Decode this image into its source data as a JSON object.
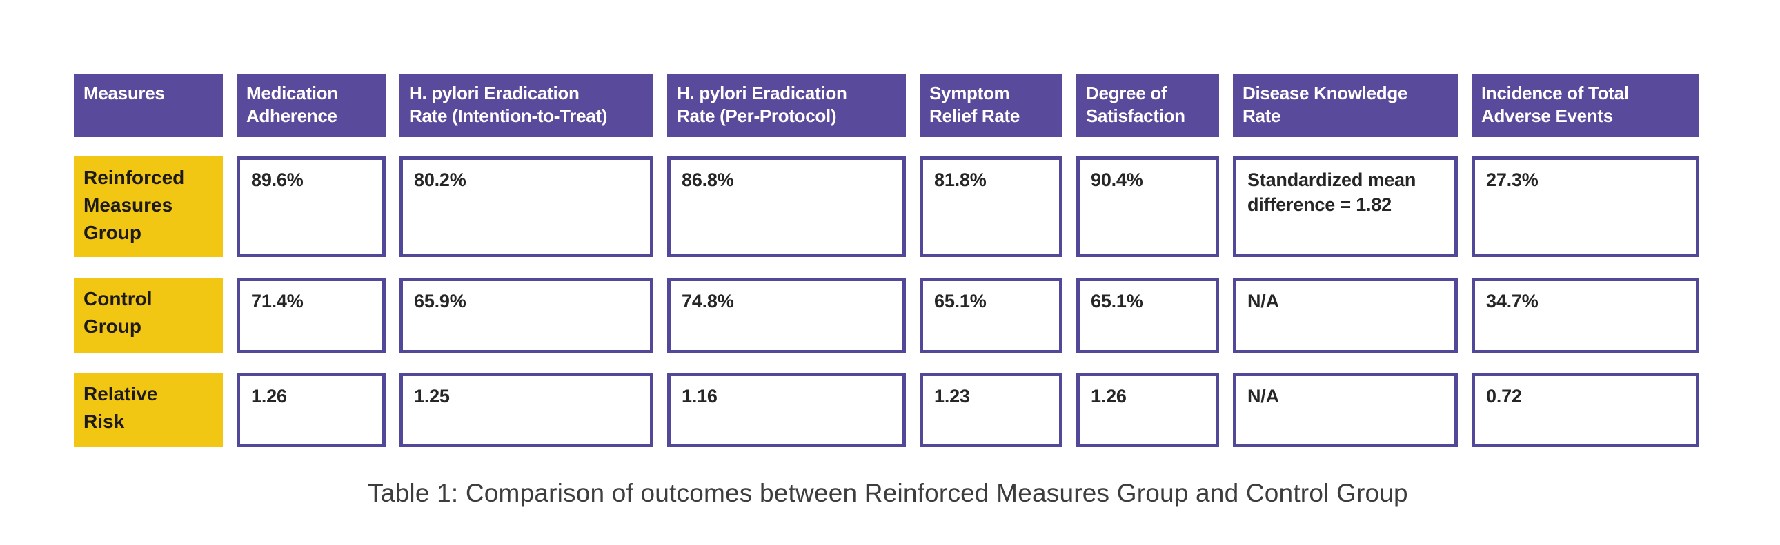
{
  "colors": {
    "header_bg": "#5a4a9b",
    "header_text": "#ffffff",
    "row_label_bg": "#f2c713",
    "cell_border": "#52489a"
  },
  "table": {
    "caption": "Table 1: Comparison of outcomes between Reinforced Measures Group and Control Group",
    "columns": [
      "Measures",
      "Medication\nAdherence",
      "H. pylori Eradication\nRate (Intention-to-Treat)",
      "H. pylori Eradication\nRate (Per-Protocol)",
      "Symptom\nRelief Rate",
      "Degree of\nSatisfaction",
      "Disease Knowledge\nRate",
      "Incidence of Total\nAdverse Events"
    ],
    "rows": [
      {
        "label": "Reinforced\nMeasures\nGroup",
        "values": [
          "89.6%",
          "80.2%",
          "86.8%",
          "81.8%",
          "90.4%",
          "Standardized mean\ndifference  = 1.82",
          "27.3%"
        ]
      },
      {
        "label": "Control\nGroup",
        "values": [
          "71.4%",
          "65.9%",
          "74.8%",
          "65.1%",
          "65.1%",
          "N/A",
          "34.7%"
        ]
      },
      {
        "label": "Relative\nRisk",
        "values": [
          "1.26",
          "1.25",
          "1.16",
          "1.23",
          "1.26",
          "N/A",
          "0.72"
        ]
      }
    ]
  }
}
